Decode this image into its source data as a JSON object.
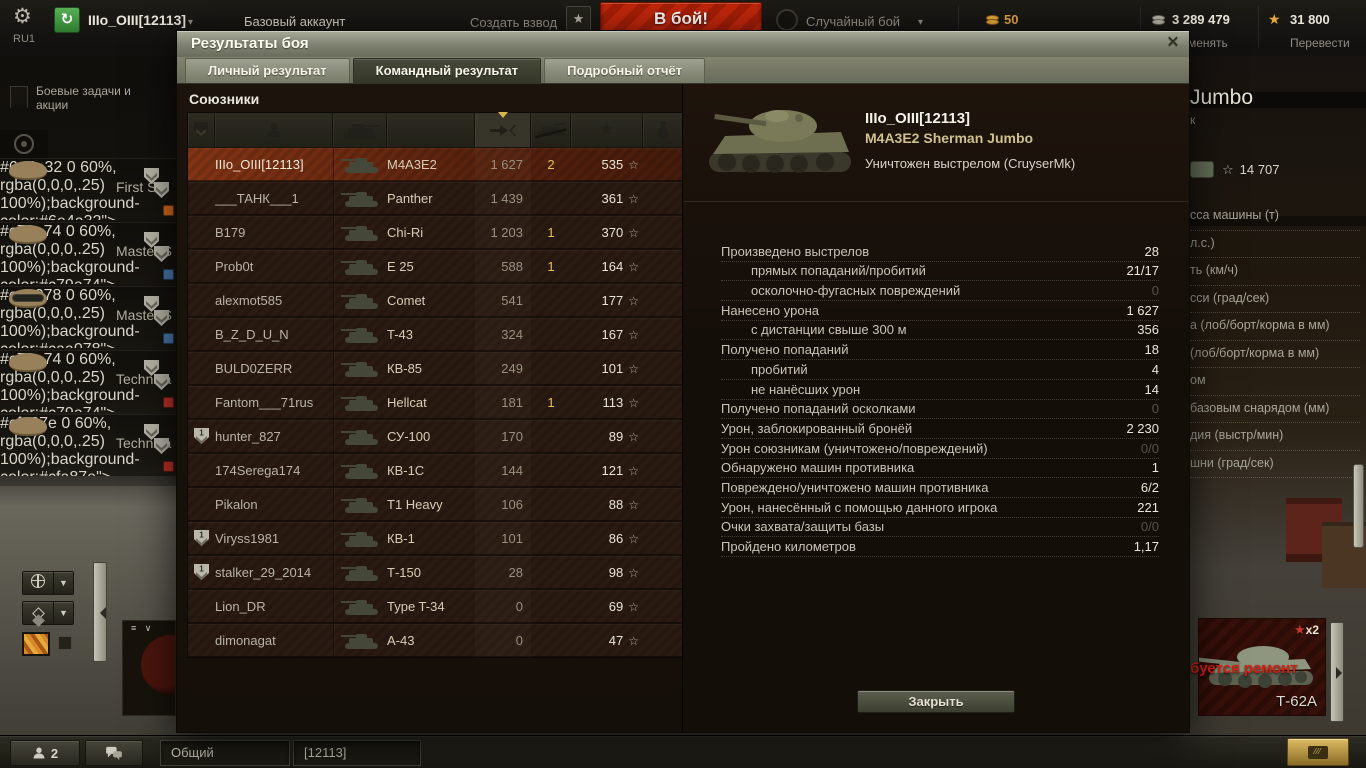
{
  "top_bar": {
    "server": "RU1",
    "player": "IIIo_OIII[12113]",
    "account_type": "Базовый аккаунт",
    "create_platoon": "Создать взвод",
    "battle_button": "В бой!",
    "battle_type": "Случайный бой",
    "gold": "50",
    "credits": "3 289 479",
    "free_xp": "31 800",
    "exchange_label": "Обменять",
    "convert_label": "Перевести",
    "colors": {
      "accent_red": "#b92207",
      "gold": "#e8a93c"
    }
  },
  "dialog": {
    "title": "Результаты боя",
    "close_icon": "✕",
    "tabs": [
      {
        "label": "Личный результат",
        "active": false
      },
      {
        "label": "Командный результат",
        "active": true
      },
      {
        "label": "Подробный отчёт",
        "active": false
      }
    ],
    "allies_header": "Союзники",
    "table": {
      "column_icons": [
        "rank-badge-icon",
        "player-icon",
        "tank-icon",
        "damage-icon",
        "kills-icon",
        "xp-star-icon",
        "medal-icon"
      ],
      "sorted_column": "damage",
      "rows": [
        {
          "player": "IIIo_OIII[12113]",
          "vehicle": "M4A3E2",
          "damage": "1 627",
          "kills": "2",
          "xp": "535",
          "self": true,
          "badge": false
        },
        {
          "player": "___ТАНК___1",
          "vehicle": "Panther",
          "damage": "1 439",
          "kills": "",
          "xp": "361",
          "badge": false
        },
        {
          "player": "B179",
          "vehicle": "Chi-Ri",
          "damage": "1 203",
          "kills": "1",
          "xp": "370",
          "badge": false
        },
        {
          "player": "Prob0t",
          "vehicle": "E 25",
          "damage": "588",
          "kills": "1",
          "xp": "164",
          "badge": false
        },
        {
          "player": "alexmot585",
          "vehicle": "Comet",
          "damage": "541",
          "kills": "",
          "xp": "177",
          "badge": false
        },
        {
          "player": "B_Z_D_U_N",
          "vehicle": "T-43",
          "damage": "324",
          "kills": "",
          "xp": "167",
          "badge": false
        },
        {
          "player": "BULD0ZERR",
          "vehicle": "КВ-85",
          "damage": "249",
          "kills": "",
          "xp": "101",
          "badge": false
        },
        {
          "player": "Fantom___71rus",
          "vehicle": "Hellcat",
          "damage": "181",
          "kills": "1",
          "xp": "113",
          "badge": false
        },
        {
          "player": "hunter_827",
          "vehicle": "СУ-100",
          "damage": "170",
          "kills": "",
          "xp": "89",
          "badge": true
        },
        {
          "player": "174Serega174",
          "vehicle": "КВ-1С",
          "damage": "144",
          "kills": "",
          "xp": "121",
          "badge": false
        },
        {
          "player": "Pikalon",
          "vehicle": "T1 Heavy",
          "damage": "106",
          "kills": "",
          "xp": "88",
          "badge": false
        },
        {
          "player": "Viryss1981",
          "vehicle": "КВ-1",
          "damage": "101",
          "kills": "",
          "xp": "86",
          "badge": true
        },
        {
          "player": "stalker_29_2014",
          "vehicle": "Т-150",
          "damage": "28",
          "kills": "",
          "xp": "98",
          "badge": true
        },
        {
          "player": "Lion_DR",
          "vehicle": "Type T-34",
          "damage": "0",
          "kills": "",
          "xp": "69",
          "badge": false
        },
        {
          "player": "dimonagat",
          "vehicle": "А-43",
          "damage": "0",
          "kills": "",
          "xp": "47",
          "badge": false
        }
      ]
    },
    "detail": {
      "player": "IIIo_OIII[12113]",
      "vehicle": "M4A3E2 Sherman Jumbo",
      "death_text": "Уничтожен выстрелом (CruyserMk)",
      "stats": [
        {
          "label": "Произведено выстрелов",
          "value": "28",
          "indent": false,
          "dim": false
        },
        {
          "label": "прямых попаданий/пробитий",
          "value": "21/17",
          "indent": true,
          "dim": false
        },
        {
          "label": "осколочно-фугасных повреждений",
          "value": "0",
          "indent": true,
          "dim": true
        },
        {
          "label": "Нанесено урона",
          "value": "1 627",
          "indent": false,
          "dim": false
        },
        {
          "label": "с дистанции свыше 300 м",
          "value": "356",
          "indent": true,
          "dim": false
        },
        {
          "label": "Получено попаданий",
          "value": "18",
          "indent": false,
          "dim": false
        },
        {
          "label": "пробитий",
          "value": "4",
          "indent": true,
          "dim": false
        },
        {
          "label": "не нанёсших урон",
          "value": "14",
          "indent": true,
          "dim": false
        },
        {
          "label": "Получено попаданий осколками",
          "value": "0",
          "indent": false,
          "dim": true
        },
        {
          "label": "Урон, заблокированный бронёй",
          "value": "2 230",
          "indent": false,
          "dim": false
        },
        {
          "label": "Урон союзникам (уничтожено/повреждений)",
          "value": "0/0",
          "indent": false,
          "dim": true
        },
        {
          "label": "Обнаружено машин противника",
          "value": "1",
          "indent": false,
          "dim": false
        },
        {
          "label": "Повреждено/уничтожено машин противника",
          "value": "6/2",
          "indent": false,
          "dim": false
        },
        {
          "label": "Урон, нанесённый с помощью данного игрока",
          "value": "221",
          "indent": false,
          "dim": false
        },
        {
          "label": "Очки захвата/защиты базы",
          "value": "0/0",
          "indent": false,
          "dim": true
        },
        {
          "label": "Пройдено километров",
          "value": "1,17",
          "indent": false,
          "dim": false
        }
      ],
      "close_button": "Закрыть"
    }
  },
  "left_panel": {
    "missions_label": "Боевые задачи и акции",
    "crew": [
      {
        "pct": "100%",
        "rank": "First Ser",
        "dot_color": "#d86a1a"
      },
      {
        "pct": "110%",
        "rank": "Master S",
        "dot_color": "#4a7ab0"
      },
      {
        "pct": "110%",
        "rank": "Master S",
        "dot_color": "#4a7ab0"
      },
      {
        "pct": "110%",
        "rank": "Technica",
        "dot_color": "#c03028"
      },
      {
        "pct": "110%",
        "rank": "Technica",
        "dot_color": "#c03028"
      }
    ]
  },
  "garage": {
    "vehicle_title": "Jumbo",
    "subtitle_fragment": "к",
    "xp_value": "14 707",
    "xp_star": "☆",
    "specs": [
      "сса машины (т)",
      "л.с.)",
      "ть (км/ч)",
      "сси (град/сек)",
      "а (лоб/борт/корма в мм)",
      "(лоб/борт/корма в мм)",
      "ом",
      "базовым снарядом (мм)",
      "дия (выстр/мин)",
      "шни (град/сек)"
    ],
    "carousel": {
      "tank_name": "Т-62А",
      "repair_text": "ебуется ремонт",
      "multiplier": "x2"
    }
  },
  "bottom_bar": {
    "contacts_count": "2",
    "chat_tabs": [
      "Общий",
      "[12113]"
    ]
  }
}
